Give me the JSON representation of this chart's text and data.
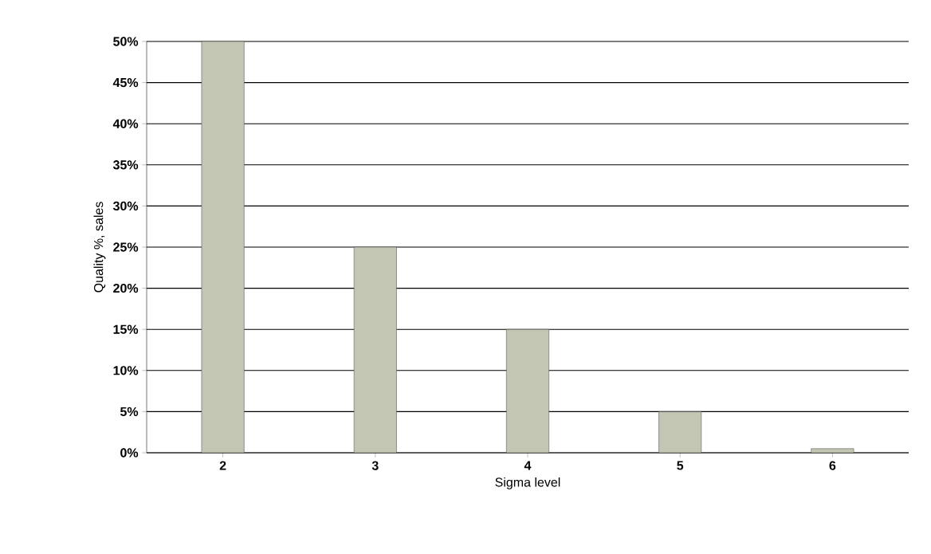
{
  "chart_data": {
    "type": "bar",
    "xlabel": "Sigma level",
    "ylabel": "Quality %, sales",
    "categories": [
      "2",
      "3",
      "4",
      "5",
      "6"
    ],
    "values": [
      50,
      25,
      15,
      5,
      0.5
    ],
    "color": "#c3c6b3",
    "ylim": [
      0,
      50
    ],
    "yticks": [
      {
        "value": 0,
        "label": "0%"
      },
      {
        "value": 5,
        "label": "5%"
      },
      {
        "value": 10,
        "label": "10%"
      },
      {
        "value": 15,
        "label": "15%"
      },
      {
        "value": 20,
        "label": "20%"
      },
      {
        "value": 25,
        "label": "25%"
      },
      {
        "value": 30,
        "label": "30%"
      },
      {
        "value": 35,
        "label": "35%"
      },
      {
        "value": 40,
        "label": "40%"
      },
      {
        "value": 45,
        "label": "45%"
      },
      {
        "value": 50,
        "label": "50%"
      }
    ],
    "grid": "y"
  }
}
